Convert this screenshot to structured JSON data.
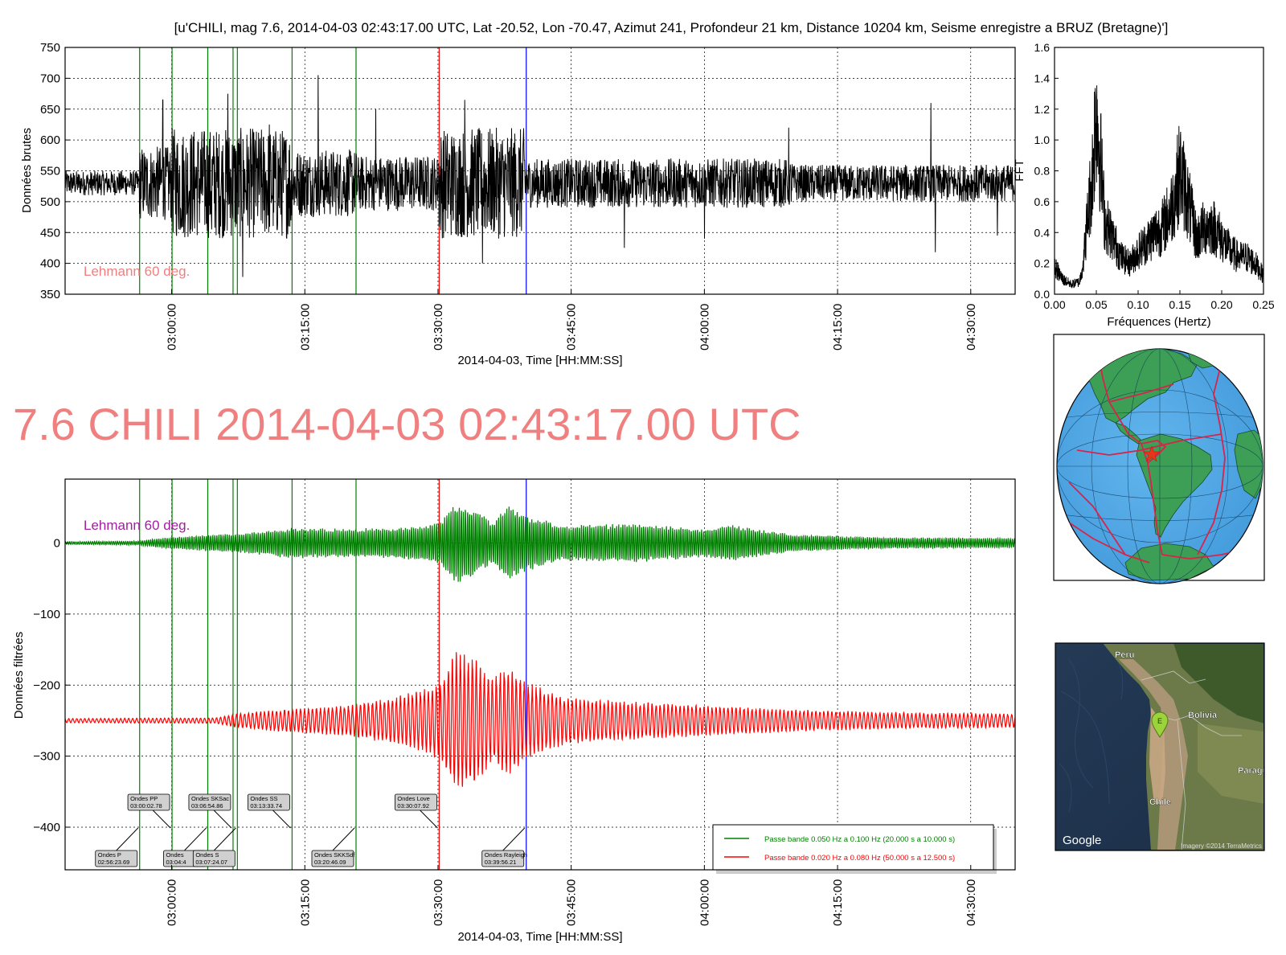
{
  "figure_title": "[u'CHILI, mag 7.6, 2014-04-03 02:43:17.00 UTC, Lat -20.52, Lon -70.47, Azimut 241, Profondeur 21 km, Distance 10204 km, Seisme enregistre a BRUZ (Bretagne)']",
  "big_title": "7.6 CHILI 2014-04-03 02:43:17.00 UTC",
  "colors": {
    "raw_trace": "#000000",
    "green_band": "#008000",
    "red_band": "#ff0000",
    "phase_line": "#008000",
    "start_marker": "#ff0000",
    "rayleigh_marker": "#0000ff",
    "big_title": "#f08080",
    "lehmann_top": "#f08080",
    "lehmann_bottom": "#a020a0"
  },
  "chart_data": [
    {
      "id": "raw",
      "type": "line",
      "title": "",
      "xlabel": "2014-04-03, Time [HH:MM:SS]",
      "ylabel": "Données brutes",
      "xlim": [
        "02:48:00",
        "04:35:00"
      ],
      "ylim": [
        350,
        750
      ],
      "yticks": [
        350,
        400,
        450,
        500,
        550,
        600,
        650,
        700,
        750
      ],
      "xticks": [
        "03:00:00",
        "03:15:00",
        "03:30:00",
        "03:45:00",
        "04:00:00",
        "04:15:00",
        "04:30:00"
      ],
      "grid": true,
      "annotation": "Lehmann 60 deg.",
      "series": [
        {
          "baseline": 530,
          "segments": [
            {
              "from": "02:48:00",
              "to": "02:56:20",
              "amplitude": 20
            },
            {
              "from": "02:56:20",
              "to": "03:00:00",
              "amplitude": 60
            },
            {
              "from": "03:00:00",
              "to": "03:13:30",
              "amplitude": 90
            },
            {
              "from": "03:13:30",
              "to": "03:21:00",
              "amplitude": 55
            },
            {
              "from": "03:21:00",
              "to": "03:30:00",
              "amplitude": 45
            },
            {
              "from": "03:30:00",
              "to": "03:39:56",
              "amplitude": 90
            },
            {
              "from": "03:39:56",
              "to": "04:10:00",
              "amplitude": 40
            },
            {
              "from": "04:10:00",
              "to": "04:35:00",
              "amplitude": 30
            }
          ],
          "spikes": [
            {
              "t": "02:59:00",
              "v": 665
            },
            {
              "t": "03:04:30",
              "v": 455
            },
            {
              "t": "03:06:20",
              "v": 675
            },
            {
              "t": "03:08:00",
              "v": 378
            },
            {
              "t": "03:11:00",
              "v": 625
            },
            {
              "t": "03:16:30",
              "v": 705
            },
            {
              "t": "03:23:00",
              "v": 650
            },
            {
              "t": "03:33:00",
              "v": 665
            },
            {
              "t": "03:35:00",
              "v": 400
            },
            {
              "t": "03:51:00",
              "v": 425
            },
            {
              "t": "04:00:00",
              "v": 440
            },
            {
              "t": "04:09:30",
              "v": 620
            },
            {
              "t": "04:25:30",
              "v": 660
            },
            {
              "t": "04:26:00",
              "v": 418
            },
            {
              "t": "04:33:00",
              "v": 445
            }
          ]
        }
      ]
    },
    {
      "id": "fft",
      "type": "line",
      "title": "",
      "xlabel": "Fréquences (Hertz)",
      "ylabel": "FFT",
      "xlim": [
        0,
        0.25
      ],
      "ylim": [
        0,
        1.6
      ],
      "xticks": [
        "0.00",
        "0.05",
        "0.10",
        "0.15",
        "0.20",
        "0.25"
      ],
      "yticks": [
        "0.0",
        "0.2",
        "0.4",
        "0.6",
        "0.8",
        "1.0",
        "1.2",
        "1.4",
        "1.6"
      ],
      "grid": false,
      "series": [
        {
          "x": [
            0,
            0.01,
            0.02,
            0.03,
            0.035,
            0.04,
            0.045,
            0.05,
            0.055,
            0.06,
            0.07,
            0.08,
            0.09,
            0.1,
            0.11,
            0.12,
            0.13,
            0.14,
            0.15,
            0.16,
            0.17,
            0.18,
            0.19,
            0.2,
            0.21,
            0.22,
            0.23,
            0.24,
            0.25
          ],
          "values": [
            0.22,
            0.12,
            0.08,
            0.1,
            0.3,
            0.65,
            0.95,
            1.52,
            1.1,
            0.6,
            0.45,
            0.3,
            0.25,
            0.35,
            0.42,
            0.5,
            0.55,
            0.7,
            1.0,
            0.75,
            0.45,
            0.55,
            0.55,
            0.45,
            0.35,
            0.3,
            0.3,
            0.25,
            0.15
          ]
        }
      ]
    },
    {
      "id": "filtered",
      "type": "line",
      "title": "",
      "xlabel": "2014-04-03, Time [HH:MM:SS]",
      "ylabel": "Données filtrées",
      "xlim": [
        "02:48:00",
        "04:35:00"
      ],
      "ylim": [
        -460,
        90
      ],
      "yticks": [
        0,
        -100,
        -200,
        -300,
        -400
      ],
      "xticks": [
        "03:00:00",
        "03:15:00",
        "03:30:00",
        "03:45:00",
        "04:00:00",
        "04:15:00",
        "04:30:00"
      ],
      "grid": true,
      "legend_position": "lower-right",
      "annotation": "Lehmann 60 deg.",
      "series": [
        {
          "name": "Passe bande 0.050 Hz a 0.100 Hz (20.000 s a 10.000 s)",
          "offset": 0,
          "envelope": [
            {
              "t": "02:48:00",
              "a": 2
            },
            {
              "t": "02:56:20",
              "a": 3
            },
            {
              "t": "02:58:00",
              "a": 6
            },
            {
              "t": "03:02:00",
              "a": 10
            },
            {
              "t": "03:08:00",
              "a": 14
            },
            {
              "t": "03:13:30",
              "a": 22
            },
            {
              "t": "03:20:00",
              "a": 20
            },
            {
              "t": "03:28:00",
              "a": 24
            },
            {
              "t": "03:30:10",
              "a": 30
            },
            {
              "t": "03:32:00",
              "a": 58
            },
            {
              "t": "03:34:00",
              "a": 50
            },
            {
              "t": "03:36:00",
              "a": 30
            },
            {
              "t": "03:38:00",
              "a": 52
            },
            {
              "t": "03:40:00",
              "a": 40
            },
            {
              "t": "03:44:00",
              "a": 25
            },
            {
              "t": "03:52:00",
              "a": 28
            },
            {
              "t": "04:00:00",
              "a": 20
            },
            {
              "t": "04:03:00",
              "a": 26
            },
            {
              "t": "04:10:00",
              "a": 12
            },
            {
              "t": "04:20:00",
              "a": 8
            },
            {
              "t": "04:35:00",
              "a": 7
            }
          ]
        },
        {
          "name": "Passe bande 0.020 Hz a 0.080 Hz (50.000 s a 12.500 s)",
          "offset": -250,
          "envelope": [
            {
              "t": "02:48:00",
              "a": 3
            },
            {
              "t": "03:05:00",
              "a": 4
            },
            {
              "t": "03:07:24",
              "a": 10
            },
            {
              "t": "03:10:00",
              "a": 14
            },
            {
              "t": "03:20:00",
              "a": 22
            },
            {
              "t": "03:27:00",
              "a": 40
            },
            {
              "t": "03:30:10",
              "a": 55
            },
            {
              "t": "03:32:00",
              "a": 100
            },
            {
              "t": "03:34:00",
              "a": 95
            },
            {
              "t": "03:36:00",
              "a": 60
            },
            {
              "t": "03:38:00",
              "a": 80
            },
            {
              "t": "03:40:00",
              "a": 55
            },
            {
              "t": "03:44:00",
              "a": 35
            },
            {
              "t": "03:50:00",
              "a": 28
            },
            {
              "t": "04:00:00",
              "a": 22
            },
            {
              "t": "04:10:00",
              "a": 16
            },
            {
              "t": "04:20:00",
              "a": 12
            },
            {
              "t": "04:35:00",
              "a": 10
            }
          ]
        }
      ]
    }
  ],
  "phase_markers": [
    {
      "name": "Ondes P",
      "time": "02:56:23.69",
      "color": "green",
      "label_side": "below"
    },
    {
      "name": "Ondes PP",
      "time": "03:00:02.78",
      "color": "green",
      "label_side": "above"
    },
    {
      "name": "Ondes",
      "time": "03:04:4",
      "color": "green",
      "label_side": "below"
    },
    {
      "name": "Ondes SKSac",
      "time": "03:06:54.86",
      "color": "green",
      "label_side": "above"
    },
    {
      "name": "Ondes S",
      "time": "03:07:24.07",
      "color": "green",
      "label_side": "below"
    },
    {
      "name": "Ondes SS",
      "time": "03:13:33.74",
      "color": "green",
      "label_side": "above"
    },
    {
      "name": "Ondes SKKSdf",
      "time": "03:20:46.09",
      "color": "green",
      "label_side": "below"
    },
    {
      "name": "Ondes Love",
      "time": "03:30:07.92",
      "color": "red",
      "label_side": "above"
    },
    {
      "name": "Ondes Rayleigh",
      "time": "03:39:56.21",
      "color": "blue",
      "label_side": "below"
    }
  ],
  "globe": {
    "icon": "globe-plate-map-icon",
    "marker": "epicenter-star-icon"
  },
  "satellite_map": {
    "labels": {
      "peru": "Peru",
      "bolivia": "Bolivia",
      "paraguay": "Paragu",
      "chile": "Chile"
    },
    "marker_label": "E",
    "google": "Google",
    "imagery_credit": "Imagery ©2014 TerraMetrics"
  }
}
